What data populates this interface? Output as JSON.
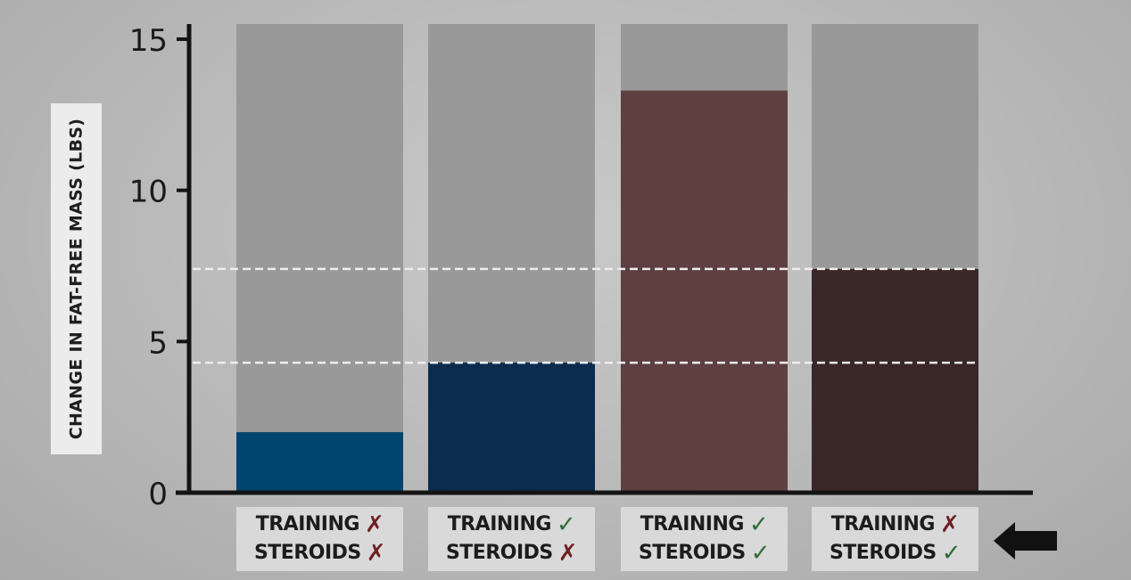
{
  "chart_data": {
    "type": "bar",
    "ylabel": "CHANGE IN FAT-FREE MASS (LBS)",
    "ylim": [
      0,
      15.5
    ],
    "yticks": [
      "0",
      "5",
      "10",
      "15"
    ],
    "reference_lines": [
      4.3,
      7.4
    ],
    "colors": [
      "#004470",
      "#0b2c4f",
      "#5e4040",
      "#3a2728"
    ],
    "track_color": "#999999",
    "categories": [
      {
        "training_label": "TRAINING",
        "training": "✗",
        "training_state": "no",
        "steroids_label": "STEROIDS",
        "steroids": "✗",
        "steroids_state": "no"
      },
      {
        "training_label": "TRAINING",
        "training": "✓",
        "training_state": "yes",
        "steroids_label": "STEROIDS",
        "steroids": "✗",
        "steroids_state": "no"
      },
      {
        "training_label": "TRAINING",
        "training": "✓",
        "training_state": "yes",
        "steroids_label": "STEROIDS",
        "steroids": "✓",
        "steroids_state": "yes"
      },
      {
        "training_label": "TRAINING",
        "training": "✗",
        "training_state": "no",
        "steroids_label": "STEROIDS",
        "steroids": "✓",
        "steroids_state": "yes"
      }
    ],
    "values": [
      2.0,
      4.3,
      13.3,
      7.4
    ]
  },
  "indicator": {
    "icon": "arrow-left-icon",
    "color": "#111111"
  }
}
